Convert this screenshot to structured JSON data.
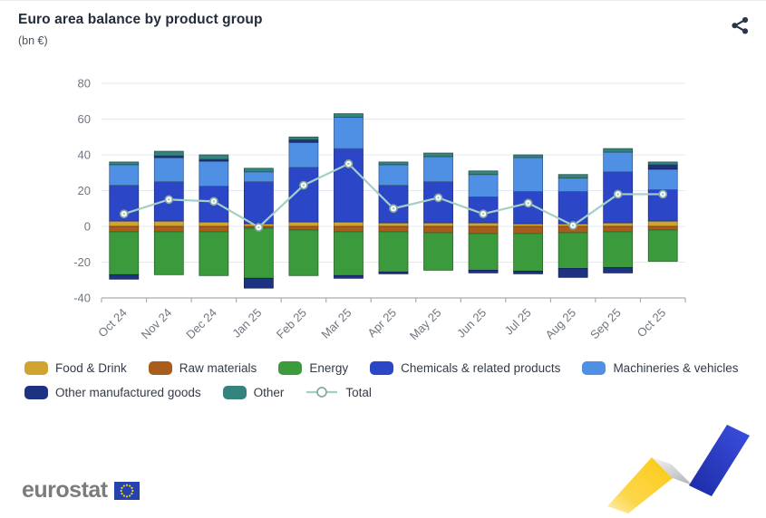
{
  "header": {
    "title": "Euro area balance by product group",
    "subtitle": "(bn €)",
    "share_icon": "share-nodes"
  },
  "chart_data": {
    "type": "bar",
    "stacked": true,
    "title": "Euro area balance by product group",
    "ylabel": "bn €",
    "xlabel": "",
    "ylim": [
      -40,
      80
    ],
    "yticks": [
      80,
      60,
      40,
      20,
      0,
      -20,
      -40
    ],
    "grid": true,
    "legend_position": "bottom",
    "categories": [
      "Oct 24",
      "Nov 24",
      "Dec 24",
      "Jan 25",
      "Feb 25",
      "Mar 25",
      "Apr 25",
      "May 25",
      "Jun 25",
      "Jul 25",
      "Aug 25",
      "Sep 25",
      "Oct 25"
    ],
    "series": [
      {
        "name": "Food & Drink",
        "color": "#cfa42f",
        "values": [
          3,
          3,
          2.5,
          1.5,
          2.5,
          2.5,
          2,
          2,
          2,
          1.5,
          1.5,
          2,
          3
        ]
      },
      {
        "name": "Raw materials",
        "color": "#a85d1d",
        "values": [
          -3,
          -3,
          -3,
          -1,
          -2,
          -3,
          -3,
          -3.5,
          -4,
          -4,
          -3.5,
          -3,
          -2
        ]
      },
      {
        "name": "Energy",
        "color": "#3a9a3c",
        "values": [
          -24,
          -24,
          -24.5,
          -28,
          -25.5,
          -24.5,
          -22.5,
          -21,
          -20.5,
          -21,
          -20,
          -20,
          -17.5
        ]
      },
      {
        "name": "Chemicals & related products",
        "color": "#2c46c8",
        "values": [
          20,
          22,
          20,
          23.5,
          30.5,
          41,
          21,
          23,
          14.5,
          18,
          18,
          28.5,
          17.5
        ]
      },
      {
        "name": "Machineries & vehicles",
        "color": "#5090e4",
        "values": [
          11.5,
          13.5,
          14,
          5.5,
          14,
          17.5,
          11.5,
          14,
          12.5,
          19,
          7.5,
          11,
          11.5
        ]
      },
      {
        "name": "Other manufactured goods",
        "color": "#1e3282",
        "values": [
          -2.5,
          1,
          1,
          -5.5,
          1.5,
          -1.5,
          -1,
          0,
          -1.5,
          -1.5,
          -5,
          -3,
          2.5
        ]
      },
      {
        "name": "Other",
        "color": "#35837d",
        "values": [
          1.5,
          2.5,
          2.5,
          2,
          1.5,
          2,
          1.5,
          2,
          2,
          1.5,
          2,
          2,
          1.5
        ]
      }
    ],
    "line_series": {
      "name": "Total",
      "color": "#a3cfc7",
      "marker": "open-circle",
      "values": [
        7,
        15,
        14,
        -0.5,
        23,
        35,
        10,
        16,
        7,
        13,
        0.5,
        18,
        18
      ]
    },
    "grid_color": "#e3e9f2",
    "axis_color": "#a7adb5",
    "tick_label_color": "#6f7680"
  },
  "footer": {
    "brand": "eurostat",
    "flag_icon": "eu-flag",
    "decoration": "zigzag-trend-ribbon"
  }
}
